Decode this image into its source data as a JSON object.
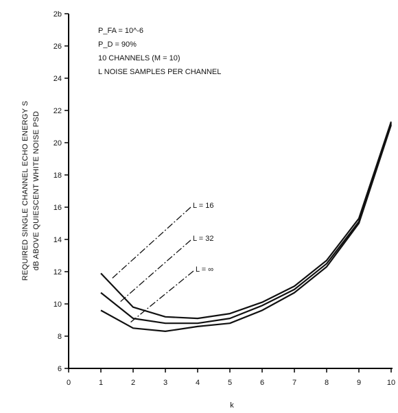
{
  "chart_data": {
    "type": "line",
    "title": "",
    "xlabel": "k",
    "ylabel": [
      "REQUIRED SINGLE CHANNEL ECHO ENERGY S",
      "dB ABOVE QUIESCENT WHITE NOISE PSD"
    ],
    "xlim": [
      0,
      10
    ],
    "ylim": [
      6,
      28
    ],
    "x_ticks": [
      0,
      1,
      2,
      3,
      4,
      5,
      6,
      7,
      8,
      9,
      10
    ],
    "y_ticks": [
      6,
      8,
      10,
      12,
      14,
      16,
      18,
      20,
      22,
      24,
      26,
      28
    ],
    "y_tick_labels": [
      "6",
      "8",
      "10",
      "12",
      "14",
      "16",
      "18",
      "20",
      "22",
      "24",
      "26",
      "2b"
    ],
    "grid": false,
    "annotations": [
      "P_FA = 10^-6",
      "P_D = 90%",
      "10 CHANNELS (M = 10)",
      "L NOISE SAMPLES PER CHANNEL"
    ],
    "series": [
      {
        "name": "L = 16",
        "x": [
          1,
          2,
          3,
          4,
          5,
          6,
          7,
          8,
          9,
          10
        ],
        "y": [
          11.9,
          9.8,
          9.2,
          9.1,
          9.4,
          10.1,
          11.1,
          12.7,
          15.3,
          21.3
        ]
      },
      {
        "name": "L = 32",
        "x": [
          1,
          2,
          3,
          4,
          5,
          6,
          7,
          8,
          9,
          10
        ],
        "y": [
          10.7,
          9.1,
          8.8,
          8.8,
          9.1,
          9.9,
          10.9,
          12.5,
          15.1,
          21.2
        ]
      },
      {
        "name": "L = ∞",
        "x": [
          1,
          2,
          3,
          4,
          5,
          6,
          7,
          8,
          9,
          10
        ],
        "y": [
          9.6,
          8.5,
          8.3,
          8.6,
          8.8,
          9.6,
          10.7,
          12.3,
          15.0,
          21.1
        ]
      }
    ]
  }
}
